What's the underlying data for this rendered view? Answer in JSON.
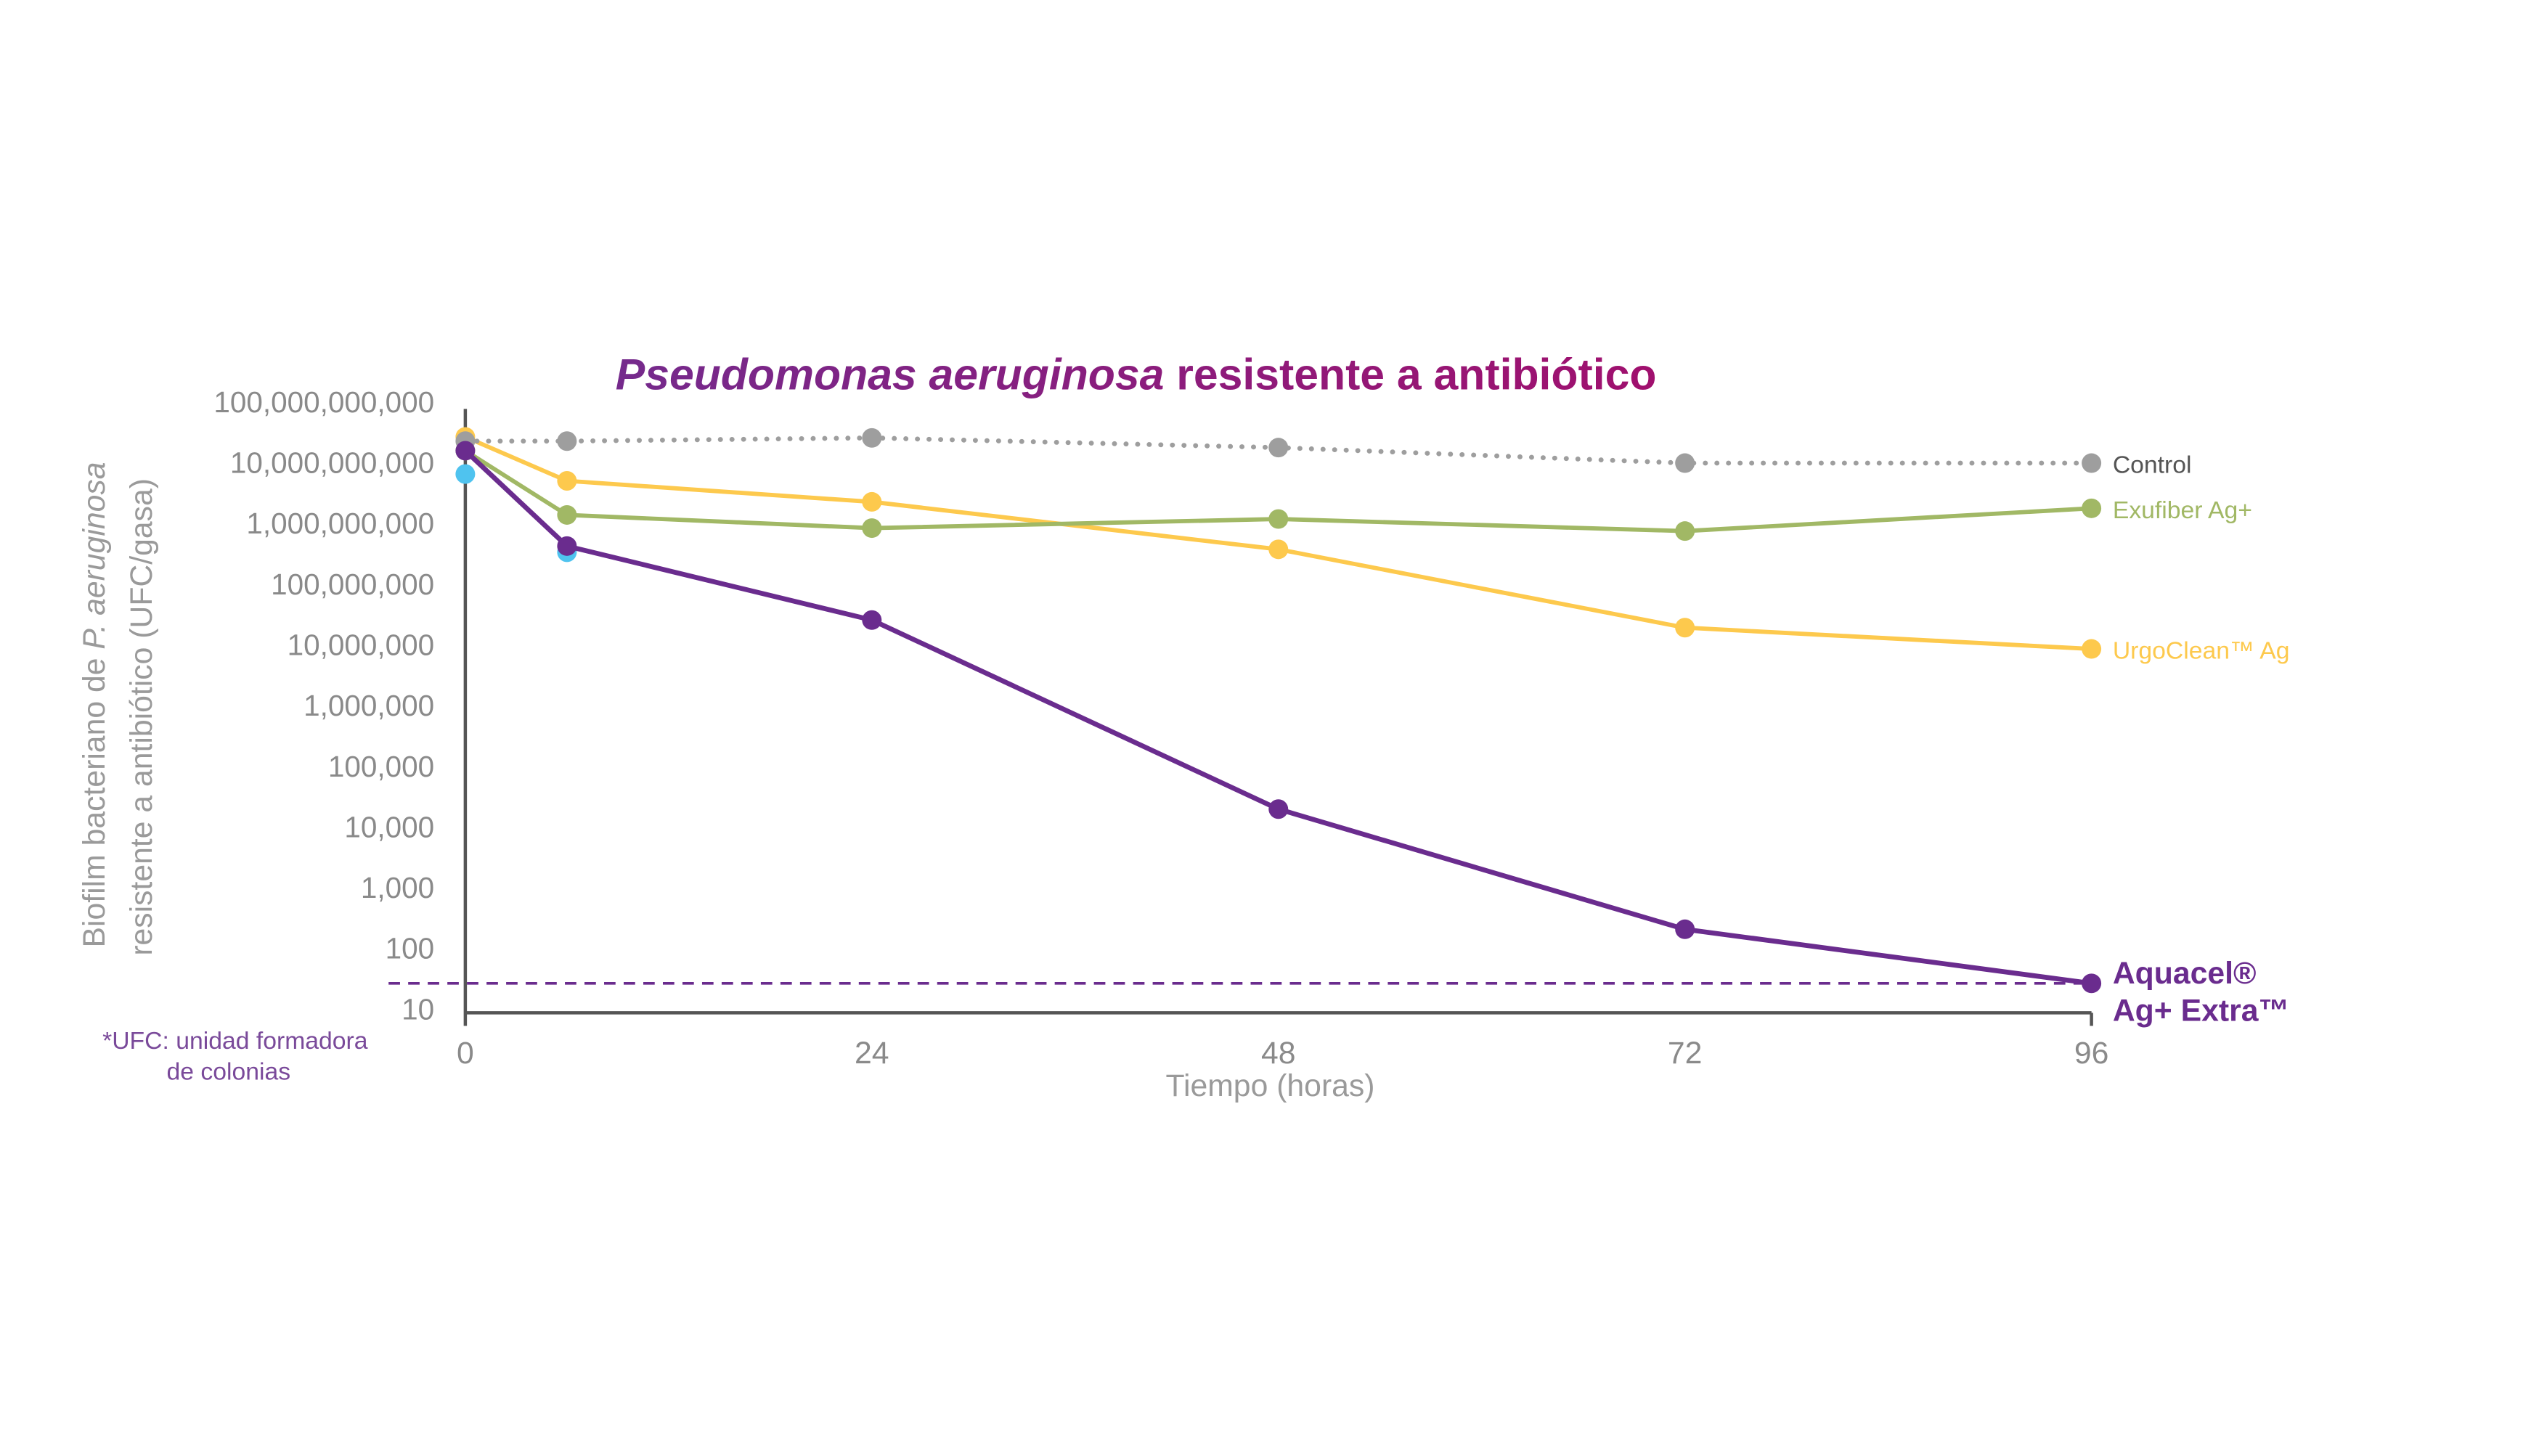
{
  "chart_data": {
    "type": "line",
    "title_italic": "Pseudomonas aeruginosa",
    "title_rest": " resistente a antibiótico",
    "ylabel_line1_pre": "Biofilm bacteriano de ",
    "ylabel_line1_italic": "P. aeruginosa",
    "ylabel_line2": "resistente a antibiótico (UFC/gasa)",
    "xlabel": "Tiempo (horas)",
    "footnote_line1": "*UFC: unidad formadora",
    "footnote_line2": "de colonias",
    "y_scale": "log",
    "ylim": [
      10,
      100000000000
    ],
    "xlim": [
      0,
      96
    ],
    "y_ticks": [
      10,
      100,
      1000,
      10000,
      100000,
      1000000,
      10000000,
      100000000,
      1000000000,
      10000000000,
      100000000000
    ],
    "y_tick_labels": [
      "10",
      "100",
      "1,000",
      "10,000",
      "100,000",
      "1,000,000",
      "10,000,000",
      "100,000,000",
      "1,000,000,000",
      "10,000,000,000",
      "100,000,000,000"
    ],
    "x_ticks": [
      0,
      24,
      48,
      72,
      96
    ],
    "x_tick_labels": [
      "0",
      "24",
      "48",
      "72",
      "96"
    ],
    "grid": false,
    "legend_placement": "inline-right",
    "detection_limit": 27,
    "detection_limit_color": "#6a2c8e",
    "x": [
      0,
      6,
      24,
      48,
      72,
      96
    ],
    "series": [
      {
        "name": "Control",
        "color": "#9e9e9e",
        "label_color": "#555555",
        "style": "dotted",
        "values": [
          23000000000,
          23000000000,
          26000000000,
          18000000000,
          10000000000,
          10000000000
        ]
      },
      {
        "name": "Exufiber Ag+",
        "color": "#a1b865",
        "label_color": "#a1b865",
        "style": "solid",
        "values": [
          16000000000,
          1400000000,
          850000000,
          1200000000,
          760000000,
          1800000000
        ]
      },
      {
        "name": "UrgoClean™ Ag",
        "color": "#fdc94d",
        "label_color": "#fdc94d",
        "style": "solid",
        "values": [
          27000000000,
          5100000000,
          2300000000,
          380000000,
          19500000,
          8700000
        ]
      },
      {
        "name": "Aquacel®",
        "name_line2": "Ag+ Extra™",
        "color": "#6a2c8e",
        "label_color": "#6a2c8e",
        "style": "solid",
        "bold": true,
        "values": [
          16000000000,
          430000000,
          26000000,
          20000,
          210,
          27
        ]
      },
      {
        "color": "#4fc3ef",
        "style": "points",
        "x": [
          0,
          6
        ],
        "values": [
          6600000000,
          340000000
        ]
      }
    ],
    "title_colors": [
      "#752a8c",
      "#a0106e"
    ],
    "axis_color": "#555555"
  }
}
